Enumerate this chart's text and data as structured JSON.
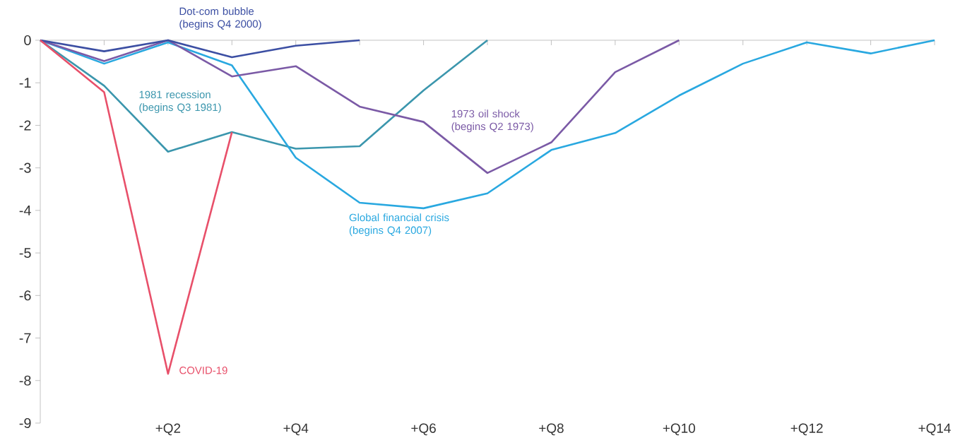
{
  "chart_data": {
    "type": "line",
    "categories": [
      null,
      null,
      "+Q2",
      null,
      "+Q4",
      null,
      "+Q6",
      null,
      "+Q8",
      null,
      "+Q10",
      null,
      "+Q12",
      null,
      "+Q14"
    ],
    "ylim": [
      -9,
      0
    ],
    "yticks": [
      0,
      -1,
      -2,
      -3,
      -4,
      -5,
      -6,
      -7,
      -8,
      -9
    ],
    "line_style": "solid",
    "series": [
      {
        "name": "1981 recession (begins Q3 1981)",
        "color": "#3b96ad",
        "values": [
          0,
          -1.07,
          -2.62,
          -2.16,
          -2.55,
          -2.49,
          -1.18,
          0,
          null,
          null,
          null,
          null,
          null,
          null,
          null
        ]
      },
      {
        "name": "Global financial crisis (begins Q4 2007)",
        "color": "#29a8e0",
        "values": [
          0,
          -0.55,
          -0.05,
          -0.59,
          -2.76,
          -3.82,
          -3.95,
          -3.6,
          -2.58,
          -2.18,
          -1.3,
          -0.55,
          -0.05,
          -0.31,
          0
        ]
      },
      {
        "name": "1973 oil shock (begins Q2 1973)",
        "color": "#7b5aa6",
        "values": [
          0,
          -0.49,
          0,
          -0.85,
          -0.61,
          -1.56,
          -1.92,
          -3.12,
          -2.4,
          -0.75,
          0,
          null,
          null,
          null,
          null
        ]
      },
      {
        "name": "Dot-com bubble (begins Q4 2000)",
        "color": "#3c4fa3",
        "values": [
          0,
          -0.26,
          0,
          -0.4,
          -0.13,
          0,
          null,
          null,
          null,
          null,
          null,
          null,
          null,
          null,
          null
        ]
      },
      {
        "name": "COVID-19",
        "color": "#e8506a",
        "values": [
          0,
          -1.22,
          -7.84,
          -2.16,
          null,
          null,
          null,
          null,
          null,
          null,
          null,
          null,
          null,
          null,
          null
        ]
      }
    ]
  }
}
